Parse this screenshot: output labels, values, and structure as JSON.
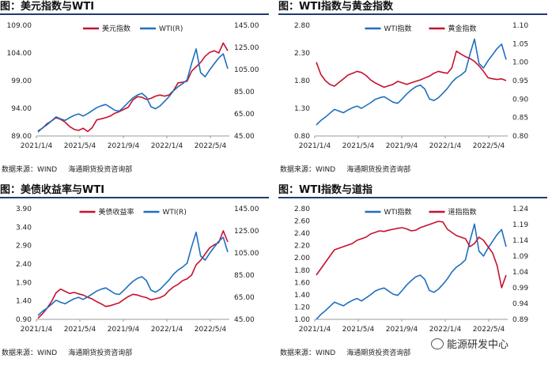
{
  "watermark": "能源研发中心",
  "chart_data": [
    {
      "type": "line",
      "title": "图：美元指数与WTI",
      "source_label": "数据来源：WIND",
      "source_org": "海通期货投资咨询部",
      "x_ticks": [
        "2021/1/4",
        "2021/5/4",
        "2021/9/4",
        "2022/1/4",
        "2022/5/4"
      ],
      "y_left": {
        "ticks": [
          "89.00",
          "94.00",
          "99.00",
          "104.00",
          "109.00"
        ],
        "min": 89,
        "max": 109
      },
      "y_right": {
        "ticks": [
          "45.00",
          "65.00",
          "85.00",
          "105.00",
          "125.00",
          "145.00"
        ],
        "min": 45,
        "max": 145
      },
      "series": [
        {
          "name": "美元指数",
          "axis": "left",
          "color": "#c8102e",
          "values": [
            89.9,
            90.4,
            91.2,
            91.7,
            92.3,
            92.0,
            91.5,
            90.7,
            90.2,
            90.0,
            90.4,
            89.8,
            90.5,
            91.9,
            92.1,
            92.3,
            92.6,
            93.1,
            93.4,
            93.8,
            94.2,
            95.5,
            96.1,
            96.0,
            95.6,
            95.8,
            96.2,
            96.4,
            96.2,
            96.4,
            97.2,
            98.6,
            98.7,
            98.9,
            100.7,
            101.5,
            102.3,
            103.4,
            104.1,
            104.4,
            104.0,
            105.8,
            104.4
          ]
        },
        {
          "name": "WTI(R)",
          "axis": "right",
          "color": "#1f6fbf",
          "values": [
            48.5,
            52.3,
            55.1,
            58.6,
            62.3,
            60.4,
            59.1,
            61.5,
            63.6,
            64.9,
            63.0,
            65.2,
            67.9,
            70.6,
            72.3,
            73.4,
            70.9,
            68.2,
            67.5,
            71.2,
            75.4,
            79.3,
            82.0,
            83.6,
            80.1,
            71.4,
            69.6,
            72.1,
            76.3,
            80.5,
            85.8,
            89.5,
            92.3,
            95.7,
            110.6,
            123.7,
            102.2,
            98.5,
            104.7,
            110.3,
            115.6,
            119.2,
            105.8
          ]
        }
      ]
    },
    {
      "type": "line",
      "title": "图：WTI指数与黄金指数",
      "source_label": "数据来源：WIND",
      "source_org": "海通期货投资咨询部",
      "x_ticks": [
        "2021/1/4",
        "2021/5/4",
        "2021/9/4",
        "2022/1/4",
        "2022/5/4"
      ],
      "y_left": {
        "ticks": [
          "0.80",
          "1.30",
          "1.80",
          "2.30",
          "2.80"
        ],
        "min": 0.8,
        "max": 2.8
      },
      "y_right": {
        "ticks": [
          "0.80",
          "0.85",
          "0.90",
          "0.95",
          "1.00",
          "1.05",
          "1.10"
        ],
        "min": 0.8,
        "max": 1.1
      },
      "series": [
        {
          "name": "WTI指数",
          "axis": "left",
          "color": "#1f6fbf",
          "values": [
            1.0,
            1.08,
            1.14,
            1.21,
            1.28,
            1.25,
            1.22,
            1.27,
            1.31,
            1.34,
            1.3,
            1.35,
            1.4,
            1.46,
            1.49,
            1.51,
            1.46,
            1.41,
            1.39,
            1.47,
            1.56,
            1.63,
            1.69,
            1.72,
            1.65,
            1.47,
            1.44,
            1.49,
            1.57,
            1.66,
            1.77,
            1.85,
            1.9,
            1.97,
            2.28,
            2.55,
            2.11,
            2.03,
            2.16,
            2.27,
            2.38,
            2.46,
            2.18
          ]
        },
        {
          "name": "黄金指数",
          "axis": "right",
          "color": "#c8102e",
          "values": [
            1.0,
            0.967,
            0.95,
            0.94,
            0.935,
            0.945,
            0.955,
            0.965,
            0.97,
            0.975,
            0.972,
            0.964,
            0.952,
            0.944,
            0.938,
            0.932,
            0.936,
            0.94,
            0.948,
            0.944,
            0.94,
            0.944,
            0.948,
            0.952,
            0.957,
            0.962,
            0.97,
            0.975,
            0.972,
            0.97,
            0.985,
            1.03,
            1.022,
            1.015,
            1.01,
            1.002,
            0.99,
            0.975,
            0.958,
            0.955,
            0.953,
            0.955,
            0.95
          ]
        }
      ]
    },
    {
      "type": "line",
      "title": "图：美债收益率与WTI",
      "source_label": "数据来源：WIND",
      "source_org": "海通期货投资咨询部",
      "x_ticks": [
        "2021/1/4",
        "2021/5/4",
        "2021/9/4",
        "2022/1/4",
        "2022/5/4"
      ],
      "y_left": {
        "ticks": [
          "0.90",
          "1.40",
          "1.90",
          "2.40",
          "2.90",
          "3.40",
          "3.90"
        ],
        "min": 0.9,
        "max": 3.9
      },
      "y_right": {
        "ticks": [
          "45.00",
          "65.00",
          "85.00",
          "105.00",
          "125.00",
          "145.00"
        ],
        "min": 45,
        "max": 145
      },
      "series": [
        {
          "name": "美债收益率",
          "axis": "left",
          "color": "#c8102e",
          "values": [
            0.93,
            1.05,
            1.2,
            1.38,
            1.62,
            1.72,
            1.66,
            1.6,
            1.63,
            1.59,
            1.56,
            1.5,
            1.45,
            1.38,
            1.32,
            1.25,
            1.27,
            1.31,
            1.35,
            1.44,
            1.52,
            1.58,
            1.56,
            1.52,
            1.49,
            1.43,
            1.46,
            1.49,
            1.55,
            1.68,
            1.78,
            1.85,
            1.95,
            2.0,
            2.1,
            2.38,
            2.5,
            2.67,
            2.84,
            2.92,
            2.98,
            3.3,
            3.0
          ]
        },
        {
          "name": "WTI(R)",
          "axis": "right",
          "color": "#1f6fbf",
          "values": [
            48.5,
            52.3,
            55.1,
            58.6,
            62.3,
            60.4,
            59.1,
            61.5,
            63.6,
            64.9,
            63.0,
            65.2,
            67.9,
            70.6,
            72.3,
            73.4,
            70.9,
            68.2,
            67.5,
            71.2,
            75.4,
            79.3,
            82.0,
            83.6,
            80.1,
            71.4,
            69.6,
            72.1,
            76.3,
            80.5,
            85.8,
            89.5,
            92.3,
            95.7,
            110.6,
            123.7,
            102.2,
            98.5,
            104.7,
            110.3,
            115.6,
            119.2,
            105.8
          ]
        }
      ]
    },
    {
      "type": "line",
      "title": "图：WTI指数与道指",
      "source_label": "数据来源：WIND",
      "source_org": "海通期货投资咨询部",
      "x_ticks": [
        "2021/1/4",
        "2021/5/4",
        "2021/9/4",
        "2022/1/4",
        "2022/5/4"
      ],
      "y_left": {
        "ticks": [
          "1.00",
          "1.20",
          "1.40",
          "1.60",
          "1.80",
          "2.00",
          "2.20",
          "2.40",
          "2.60",
          "2.80"
        ],
        "min": 1.0,
        "max": 2.8
      },
      "y_right": {
        "ticks": [
          "0.89",
          "0.94",
          "0.99",
          "1.04",
          "1.09",
          "1.14",
          "1.19",
          "1.24"
        ],
        "min": 0.89,
        "max": 1.24
      },
      "series": [
        {
          "name": "WTI指数",
          "axis": "left",
          "color": "#1f6fbf",
          "values": [
            1.0,
            1.08,
            1.14,
            1.21,
            1.28,
            1.25,
            1.22,
            1.27,
            1.31,
            1.34,
            1.3,
            1.35,
            1.4,
            1.46,
            1.49,
            1.51,
            1.46,
            1.41,
            1.39,
            1.47,
            1.56,
            1.63,
            1.69,
            1.72,
            1.65,
            1.47,
            1.44,
            1.49,
            1.57,
            1.66,
            1.77,
            1.85,
            1.9,
            1.97,
            2.28,
            2.55,
            2.11,
            2.03,
            2.16,
            2.27,
            2.38,
            2.46,
            2.18
          ]
        },
        {
          "name": "道指指数",
          "axis": "right",
          "color": "#c8102e",
          "values": [
            1.03,
            1.05,
            1.07,
            1.09,
            1.11,
            1.115,
            1.12,
            1.125,
            1.13,
            1.14,
            1.145,
            1.15,
            1.16,
            1.165,
            1.17,
            1.168,
            1.172,
            1.175,
            1.178,
            1.18,
            1.176,
            1.17,
            1.172,
            1.18,
            1.185,
            1.19,
            1.195,
            1.2,
            1.198,
            1.175,
            1.165,
            1.155,
            1.15,
            1.145,
            1.12,
            1.13,
            1.15,
            1.14,
            1.12,
            1.1,
            1.06,
            0.99,
            1.03
          ]
        }
      ]
    }
  ]
}
